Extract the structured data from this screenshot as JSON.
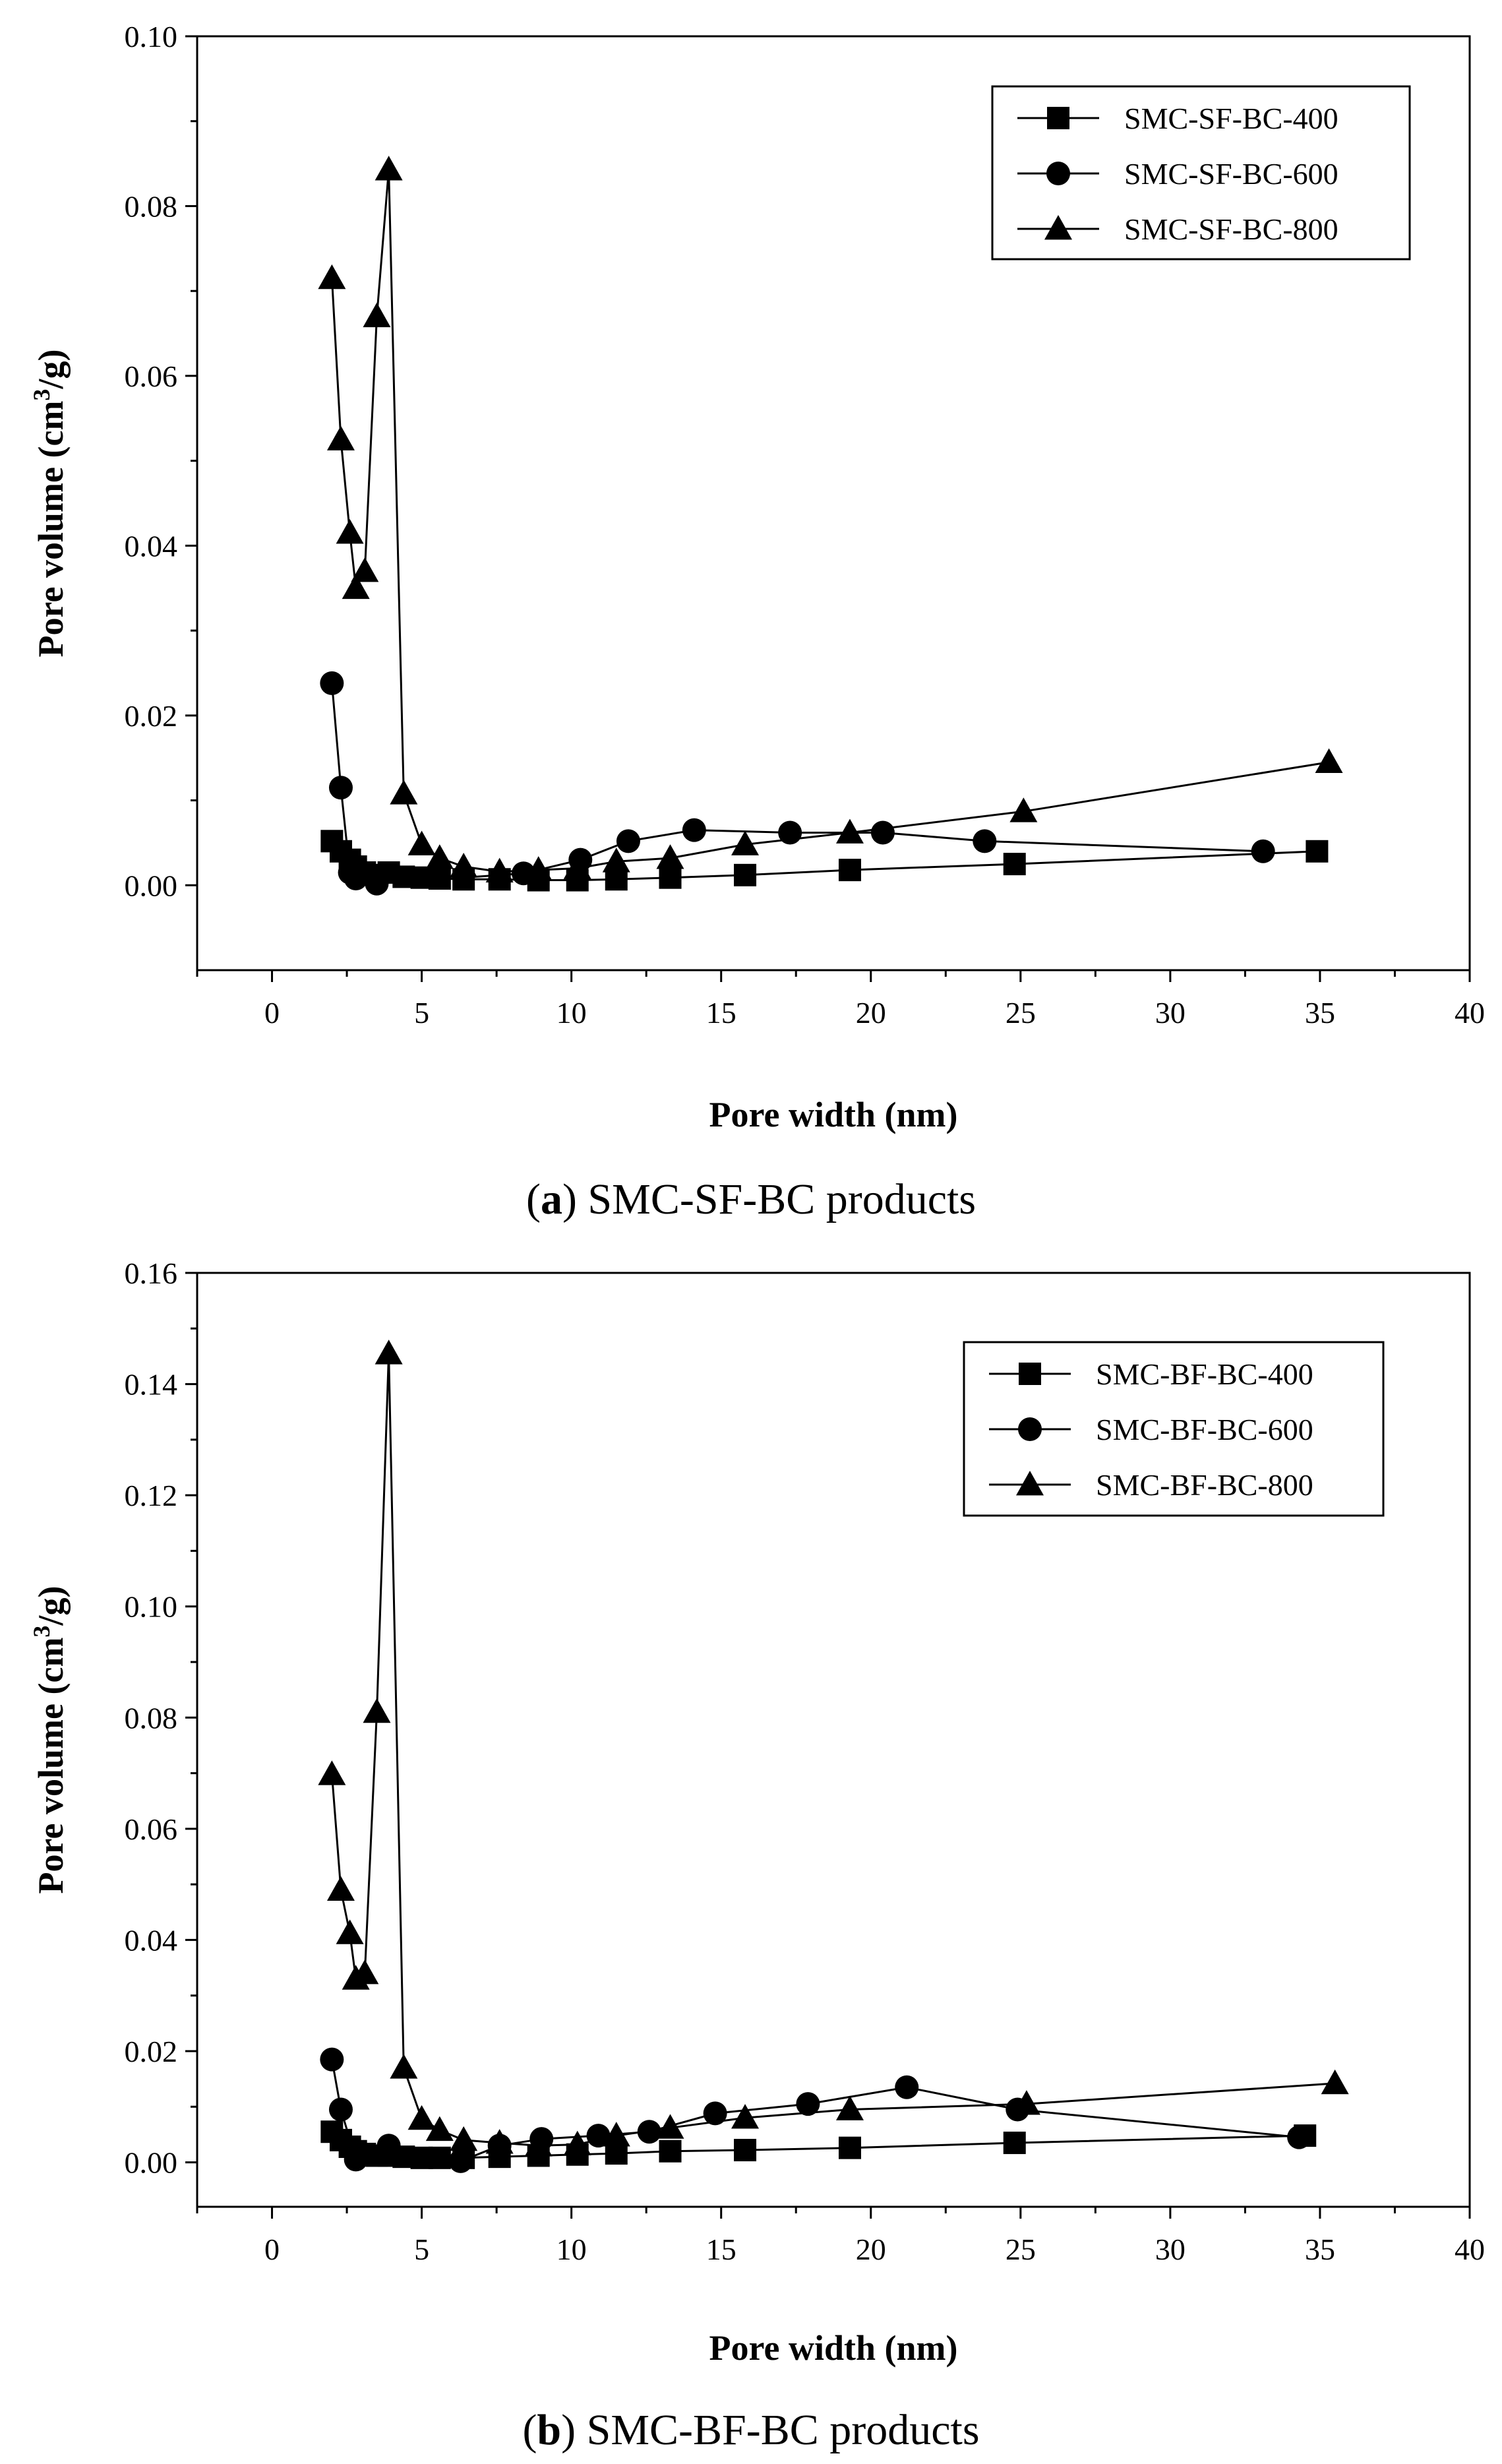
{
  "chart_data": [
    {
      "type": "line",
      "caption": {
        "open": "(",
        "letter": "a",
        "close": ")",
        "text": " SMC-SF-BC products"
      },
      "xlabel": "Pore width (nm)",
      "ylabel": {
        "main": "Pore volume (cm",
        "sup": "3",
        "end": "/g)"
      },
      "xlim": [
        -2.5,
        40
      ],
      "ylim": [
        -0.01,
        0.1
      ],
      "xticks": [
        0,
        5,
        10,
        15,
        20,
        25,
        30,
        35,
        40
      ],
      "xtick_labels": [
        "0",
        "5",
        "10",
        "15",
        "20",
        "25",
        "30",
        "35",
        "40"
      ],
      "yticks": [
        0.0,
        0.02,
        0.04,
        0.06,
        0.08,
        0.1
      ],
      "ytick_labels": [
        "0.00",
        "0.02",
        "0.04",
        "0.06",
        "0.08",
        "0.10"
      ],
      "legend": "top-right",
      "series": [
        {
          "name": "SMC-SF-BC-400",
          "marker": "square",
          "x": [
            2.0,
            2.3,
            2.6,
            2.8,
            3.1,
            3.5,
            3.9,
            4.4,
            5.0,
            5.6,
            6.4,
            7.6,
            8.9,
            10.2,
            11.5,
            13.3,
            15.8,
            19.3,
            24.8,
            34.9
          ],
          "y": [
            0.0052,
            0.004,
            0.003,
            0.0022,
            0.0015,
            0.0012,
            0.0015,
            0.001,
            0.0009,
            0.0008,
            0.0007,
            0.0007,
            0.0006,
            0.0006,
            0.0007,
            0.0009,
            0.0012,
            0.0018,
            0.0025,
            0.004
          ]
        },
        {
          "name": "SMC-SF-BC-600",
          "marker": "circle",
          "x": [
            2.0,
            2.3,
            2.6,
            2.8,
            3.5,
            8.4,
            10.3,
            11.9,
            14.1,
            17.3,
            20.4,
            23.8,
            33.1
          ],
          "y": [
            0.0238,
            0.0115,
            0.0015,
            0.0008,
            0.0002,
            0.0014,
            0.003,
            0.0052,
            0.0065,
            0.0062,
            0.0062,
            0.0052,
            0.004
          ]
        },
        {
          "name": "SMC-SF-BC-800",
          "marker": "triangle",
          "x": [
            2.0,
            2.3,
            2.6,
            2.8,
            3.1,
            3.5,
            3.9,
            4.4,
            5.0,
            5.6,
            6.4,
            7.6,
            8.9,
            10.2,
            11.5,
            13.3,
            15.8,
            19.3,
            25.1,
            35.3
          ],
          "y": [
            0.0715,
            0.0525,
            0.0415,
            0.035,
            0.037,
            0.067,
            0.0843,
            0.0108,
            0.0048,
            0.0032,
            0.0022,
            0.0016,
            0.0018,
            0.002,
            0.0028,
            0.0032,
            0.0048,
            0.0062,
            0.0087,
            0.0145
          ]
        }
      ]
    },
    {
      "type": "line",
      "caption": {
        "open": "(",
        "letter": "b",
        "close": ")",
        "text": " SMC-BF-BC products"
      },
      "xlabel": "Pore width (nm)",
      "ylabel": {
        "main": "Pore volume (cm",
        "sup": "3",
        "end": "/g)"
      },
      "xlim": [
        -2.5,
        40
      ],
      "ylim": [
        -0.008,
        0.16
      ],
      "xticks": [
        0,
        5,
        10,
        15,
        20,
        25,
        30,
        35,
        40
      ],
      "xtick_labels": [
        "0",
        "5",
        "10",
        "15",
        "20",
        "25",
        "30",
        "35",
        "40"
      ],
      "yticks": [
        0.0,
        0.02,
        0.04,
        0.06,
        0.08,
        0.1,
        0.12,
        0.14,
        0.16
      ],
      "ytick_labels": [
        "0.00",
        "0.02",
        "0.04",
        "0.06",
        "0.08",
        "0.10",
        "0.12",
        "0.14",
        "0.16"
      ],
      "legend": "top-right",
      "series": [
        {
          "name": "SMC-BF-BC-400",
          "marker": "square",
          "x": [
            2.0,
            2.3,
            2.6,
            2.8,
            3.1,
            3.5,
            3.9,
            4.4,
            5.0,
            5.6,
            6.4,
            7.6,
            8.9,
            10.2,
            11.5,
            13.3,
            15.8,
            19.3,
            24.8,
            34.5
          ],
          "y": [
            0.0055,
            0.004,
            0.0028,
            0.002,
            0.0015,
            0.0012,
            0.0012,
            0.001,
            0.0008,
            0.0008,
            0.0008,
            0.001,
            0.0012,
            0.0014,
            0.0016,
            0.002,
            0.0022,
            0.0026,
            0.0035,
            0.0048
          ]
        },
        {
          "name": "SMC-BF-BC-600",
          "marker": "circle",
          "x": [
            2.0,
            2.3,
            2.8,
            3.9,
            6.3,
            7.6,
            9.0,
            10.9,
            12.6,
            14.8,
            17.9,
            21.2,
            24.9,
            34.3
          ],
          "y": [
            0.0185,
            0.0095,
            0.0005,
            0.003,
            0.0002,
            0.003,
            0.0042,
            0.0048,
            0.0055,
            0.0088,
            0.0105,
            0.0135,
            0.0095,
            0.0045
          ]
        },
        {
          "name": "SMC-BF-BC-800",
          "marker": "triangle",
          "x": [
            2.0,
            2.3,
            2.6,
            2.8,
            3.1,
            3.5,
            3.9,
            4.4,
            5.0,
            5.6,
            6.4,
            7.6,
            8.9,
            10.2,
            11.5,
            13.3,
            15.8,
            19.3,
            25.2,
            35.5
          ],
          "y": [
            0.0698,
            0.049,
            0.0412,
            0.033,
            0.034,
            0.081,
            0.1455,
            0.017,
            0.0078,
            0.0058,
            0.004,
            0.0035,
            0.003,
            0.0032,
            0.0048,
            0.0062,
            0.008,
            0.0095,
            0.0105,
            0.0142
          ]
        }
      ]
    }
  ]
}
